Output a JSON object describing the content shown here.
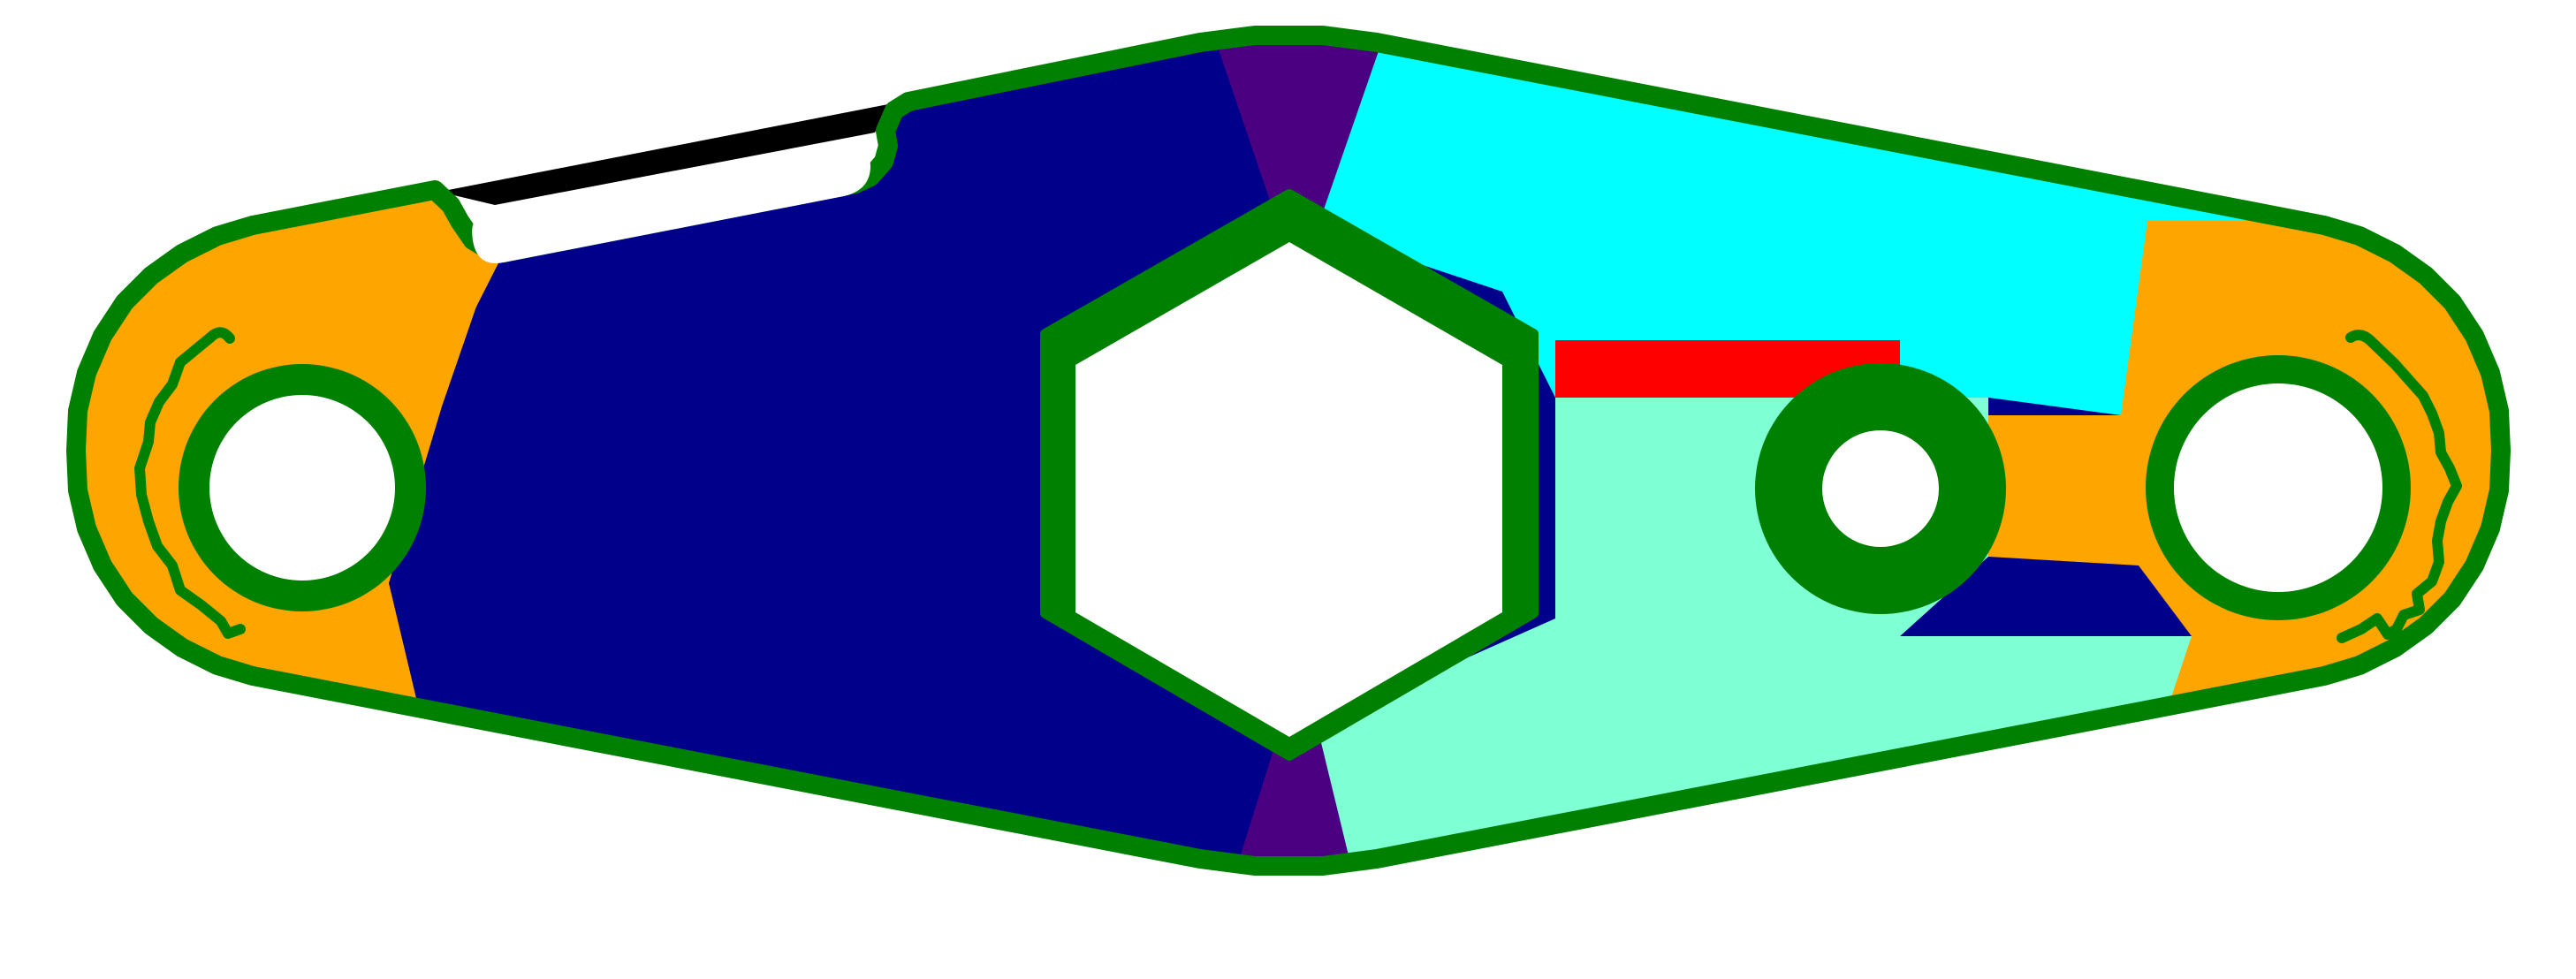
{
  "diagram": {
    "description_visible_text": "",
    "colors": {
      "background": "#ffffff",
      "outline": "#008000",
      "left_lobe": "#FFA500",
      "left_web": "#00008B",
      "seam_top": "#4B0082",
      "seam_bottom": "#4B0082",
      "upper_right": "#00FFFF",
      "red_strip": "#FF0000",
      "lower_right": "#7FFFD4",
      "right_blue": "#00008B",
      "right_lobe": "#FFA500",
      "slot_shadow": "#000000",
      "hole_fill": "#ffffff"
    },
    "features": {
      "left_bore": "circle",
      "center_bore": "hexagon",
      "small_bore": "circle",
      "right_bore": "circle",
      "slot": "rounded-slot",
      "left_notches": "scalloped",
      "right_notches": "scalloped"
    }
  }
}
